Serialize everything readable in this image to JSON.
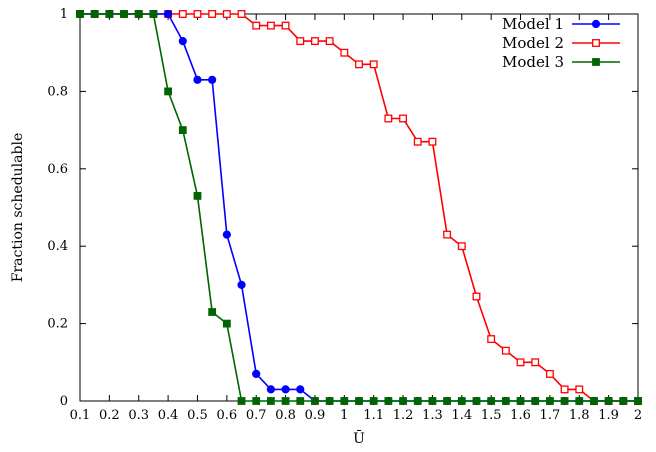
{
  "chart_data": {
    "type": "line",
    "title": "",
    "xlabel": "Ū",
    "ylabel": "Fraction schedulable",
    "xlim": [
      0.1,
      2.0
    ],
    "ylim": [
      0,
      1
    ],
    "xticks": [
      0.1,
      0.2,
      0.3,
      0.4,
      0.5,
      0.6,
      0.7,
      0.8,
      0.9,
      1.0,
      1.1,
      1.2,
      1.3,
      1.4,
      1.5,
      1.6,
      1.7,
      1.8,
      1.9,
      2.0
    ],
    "xtick_labels": [
      "0.1",
      "0.2",
      "0.3",
      "0.4",
      "0.5",
      "0.6",
      "0.7",
      "0.8",
      "0.9",
      "1",
      "1.1",
      "1.2",
      "1.3",
      "1.4",
      "1.5",
      "1.6",
      "1.7",
      "1.8",
      "1.9",
      "2"
    ],
    "yticks": [
      0,
      0.2,
      0.4,
      0.6,
      0.8,
      1
    ],
    "ytick_labels": [
      "0",
      "0.2",
      "0.4",
      "0.6",
      "0.8",
      "1"
    ],
    "grid": false,
    "legend_position": "top-right",
    "x": [
      0.1,
      0.15,
      0.2,
      0.25,
      0.3,
      0.35,
      0.4,
      0.45,
      0.5,
      0.55,
      0.6,
      0.65,
      0.7,
      0.75,
      0.8,
      0.85,
      0.9,
      0.95,
      1.0,
      1.05,
      1.1,
      1.15,
      1.2,
      1.25,
      1.3,
      1.35,
      1.4,
      1.45,
      1.5,
      1.55,
      1.6,
      1.65,
      1.7,
      1.75,
      1.8,
      1.85,
      1.9,
      1.95,
      2.0
    ],
    "series": [
      {
        "name": "Model 1",
        "color": "#0000ff",
        "marker": "circle",
        "values": [
          1,
          1,
          1,
          1,
          1,
          1,
          1,
          0.93,
          0.83,
          0.83,
          0.43,
          0.3,
          0.07,
          0.03,
          0.03,
          0.03,
          0,
          0,
          0,
          0,
          0,
          0,
          0,
          0,
          0,
          0,
          0,
          0,
          0,
          0,
          0,
          0,
          0,
          0,
          0,
          0,
          0,
          0,
          0
        ]
      },
      {
        "name": "Model 2",
        "color": "#ff0000",
        "marker": "open-square",
        "values": [
          1,
          1,
          1,
          1,
          1,
          1,
          1,
          1,
          1,
          1,
          1,
          1,
          0.97,
          0.97,
          0.97,
          0.93,
          0.93,
          0.93,
          0.9,
          0.87,
          0.87,
          0.73,
          0.73,
          0.67,
          0.67,
          0.43,
          0.4,
          0.27,
          0.16,
          0.13,
          0.1,
          0.1,
          0.07,
          0.03,
          0.03,
          0,
          0,
          0,
          0
        ]
      },
      {
        "name": "Model 3",
        "color": "#006400",
        "marker": "filled-square",
        "values": [
          1,
          1,
          1,
          1,
          1,
          1,
          0.8,
          0.7,
          0.53,
          0.23,
          0.2,
          0,
          0,
          0,
          0,
          0,
          0,
          0,
          0,
          0,
          0,
          0,
          0,
          0,
          0,
          0,
          0,
          0,
          0,
          0,
          0,
          0,
          0,
          0,
          0,
          0,
          0,
          0,
          0
        ]
      }
    ]
  }
}
